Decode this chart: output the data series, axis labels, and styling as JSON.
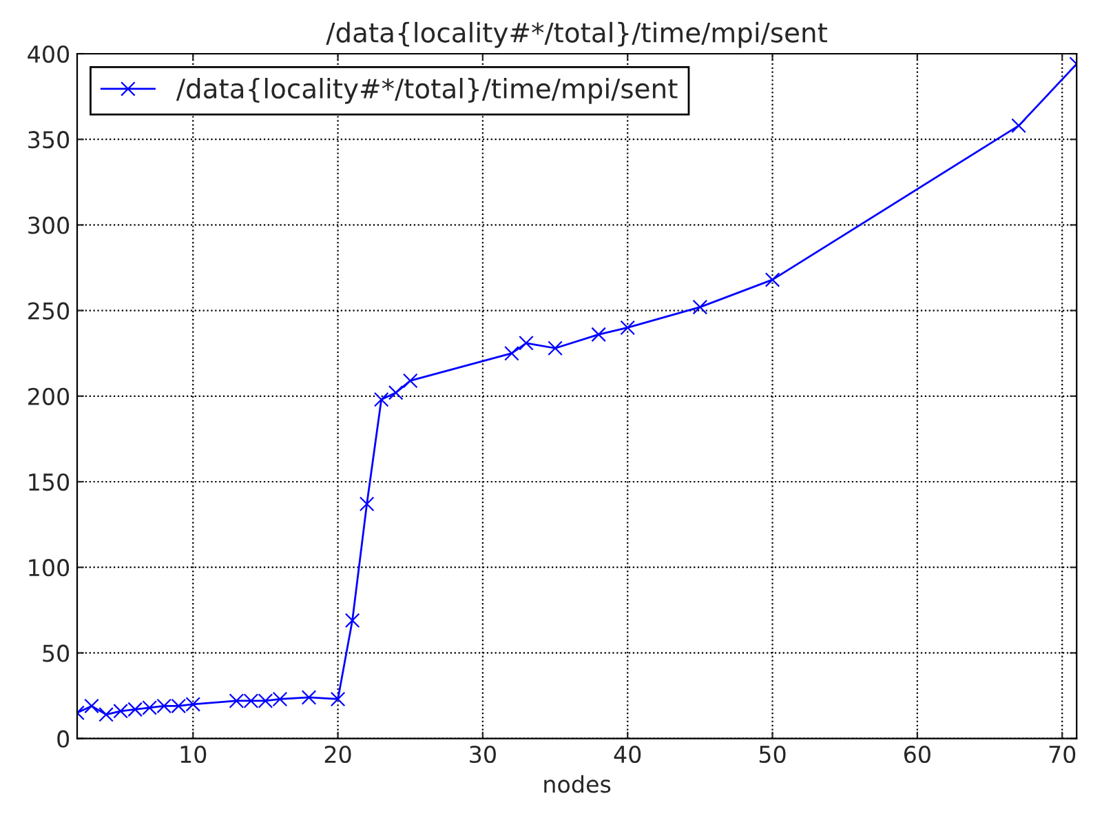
{
  "chart_data": {
    "type": "line",
    "title": "/data{locality#*/total}/time/mpi/sent",
    "xlabel": "nodes",
    "x": [
      2,
      3,
      4,
      5,
      6,
      7,
      8,
      9,
      10,
      13,
      14,
      15,
      16,
      18,
      20,
      21,
      22,
      23,
      24,
      25,
      32,
      33,
      35,
      38,
      40,
      45,
      50,
      67,
      71
    ],
    "series": [
      {
        "name": "/data{locality#*/total}/time/mpi/sent",
        "color": "#0000ff",
        "values": [
          15,
          19,
          14,
          16,
          17,
          18,
          19,
          19,
          20,
          22,
          22,
          22,
          23,
          24,
          23,
          69,
          137,
          198,
          202,
          209,
          225,
          231,
          228,
          236,
          240,
          252,
          268,
          358,
          394
        ]
      }
    ],
    "xlim": [
      2,
      71
    ],
    "xticks": [
      10,
      20,
      30,
      40,
      50,
      60,
      70
    ],
    "ylim": [
      0,
      400
    ],
    "yticks": [
      0,
      50,
      100,
      150,
      200,
      250,
      300,
      350,
      400
    ],
    "grid": true,
    "legend": "top left",
    "marker": "cross",
    "line_style": "solid"
  }
}
